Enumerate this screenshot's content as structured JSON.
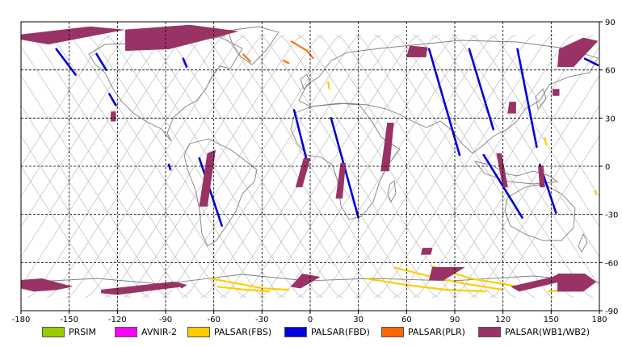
{
  "map": {
    "lon_ticks": [
      "-180",
      "-150",
      "-120",
      "-90",
      "-60",
      "-30",
      "0",
      "30",
      "60",
      "90",
      "120",
      "150",
      "180"
    ],
    "lat_ticks": [
      "90",
      "60",
      "30",
      "0",
      "-30",
      "-60",
      "-90"
    ],
    "lon_range": [
      -180,
      180
    ],
    "lat_range": [
      -90,
      90
    ],
    "grid_color": "#000000",
    "orbit_track_color": "#bdbdbd",
    "coastline_color": "#808080"
  },
  "legend": {
    "items": [
      {
        "label": "PRSIM",
        "color": "#99cc00"
      },
      {
        "label": "AVNIR-2",
        "color": "#ff00ff"
      },
      {
        "label": "PALSAR(FBS)",
        "color": "#ffcc00"
      },
      {
        "label": "PALSAR(FBD)",
        "color": "#0000dd"
      },
      {
        "label": "PALSAR(PLR)",
        "color": "#ff6600"
      },
      {
        "label": "PALSAR(WB1/WB2)",
        "color": "#993366"
      }
    ]
  },
  "fbd_strips": [
    {
      "lon1": -158,
      "lat1": 73,
      "lon2": -146,
      "lat2": 57
    },
    {
      "lon1": -133,
      "lat1": 70,
      "lon2": -127,
      "lat2": 60
    },
    {
      "lon1": -125,
      "lat1": 45,
      "lon2": -121,
      "lat2": 38
    },
    {
      "lon1": -79,
      "lat1": 67,
      "lon2": -77,
      "lat2": 62
    },
    {
      "lon1": -69,
      "lat1": 5,
      "lon2": -55,
      "lat2": -37
    },
    {
      "lon1": -88,
      "lat1": 1,
      "lon2": -87,
      "lat2": -2
    },
    {
      "lon1": -10,
      "lat1": 35,
      "lon2": -2,
      "lat2": 3
    },
    {
      "lon1": 13,
      "lat1": 30,
      "lon2": 30,
      "lat2": -32
    },
    {
      "lon1": 74,
      "lat1": 73,
      "lon2": 93,
      "lat2": 7
    },
    {
      "lon1": 99,
      "lat1": 73,
      "lon2": 114,
      "lat2": 23
    },
    {
      "lon1": 108,
      "lat1": 7,
      "lon2": 132,
      "lat2": -32
    },
    {
      "lon1": 129,
      "lat1": 73,
      "lon2": 141,
      "lat2": 12
    },
    {
      "lon1": 143,
      "lat1": 1,
      "lon2": 153,
      "lat2": -29
    },
    {
      "lon1": 171,
      "lat1": 67,
      "lon2": 179,
      "lat2": 63
    }
  ],
  "wb_polys": [
    [
      [
        -180,
        82
      ],
      [
        -137,
        87
      ],
      [
        -116,
        85
      ],
      [
        -163,
        76
      ],
      [
        -180,
        79
      ]
    ],
    [
      [
        -115,
        85
      ],
      [
        -75,
        88
      ],
      [
        -45,
        84
      ],
      [
        -88,
        73
      ],
      [
        -115,
        72
      ]
    ],
    [
      [
        -124,
        34
      ],
      [
        -121,
        34
      ],
      [
        -121,
        28
      ],
      [
        -124,
        28
      ]
    ],
    [
      [
        -64,
        8
      ],
      [
        -59,
        10
      ],
      [
        -64,
        -25
      ],
      [
        -69,
        -25
      ]
    ],
    [
      [
        -4,
        5
      ],
      [
        0,
        5
      ],
      [
        -5,
        -13
      ],
      [
        -9,
        -13
      ]
    ],
    [
      [
        19,
        2
      ],
      [
        22,
        2
      ],
      [
        20,
        -20
      ],
      [
        16,
        -20
      ]
    ],
    [
      [
        48,
        27
      ],
      [
        52,
        27
      ],
      [
        49,
        -3
      ],
      [
        44,
        -3
      ]
    ],
    [
      [
        62,
        75
      ],
      [
        73,
        74
      ],
      [
        72,
        68
      ],
      [
        60,
        68
      ]
    ],
    [
      [
        124,
        40
      ],
      [
        128,
        40
      ],
      [
        128,
        33
      ],
      [
        123,
        33
      ]
    ],
    [
      [
        116,
        8
      ],
      [
        119,
        8
      ],
      [
        123,
        -13
      ],
      [
        120,
        -13
      ]
    ],
    [
      [
        142,
        0
      ],
      [
        145,
        0
      ],
      [
        146,
        -13
      ],
      [
        143,
        -13
      ]
    ],
    [
      [
        155,
        73
      ],
      [
        170,
        80
      ],
      [
        179,
        78
      ],
      [
        164,
        62
      ],
      [
        154,
        62
      ]
    ],
    [
      [
        151,
        48
      ],
      [
        155,
        48
      ],
      [
        155,
        44
      ],
      [
        151,
        44
      ]
    ],
    [
      [
        70,
        -51
      ],
      [
        76,
        -51
      ],
      [
        75,
        -55
      ],
      [
        69,
        -55
      ]
    ],
    [
      [
        -180,
        -71
      ],
      [
        -167,
        -70
      ],
      [
        -148,
        -75
      ],
      [
        -158,
        -77
      ],
      [
        -172,
        -78
      ],
      [
        -180,
        -76
      ]
    ],
    [
      [
        -130,
        -77
      ],
      [
        -85,
        -72
      ],
      [
        -80,
        -75
      ],
      [
        -120,
        -80
      ],
      [
        -130,
        -79
      ]
    ],
    [
      [
        -5,
        -67
      ],
      [
        6,
        -69
      ],
      [
        -6,
        -76
      ],
      [
        -12,
        -75
      ]
    ],
    [
      [
        -84,
        -72
      ],
      [
        -77,
        -74
      ],
      [
        -80,
        -76
      ]
    ],
    [
      [
        125,
        -75
      ],
      [
        151,
        -69
      ],
      [
        155,
        -67
      ],
      [
        155,
        -72
      ],
      [
        130,
        -78
      ]
    ],
    [
      [
        154,
        -67
      ],
      [
        171,
        -67
      ],
      [
        178,
        -72
      ],
      [
        170,
        -78
      ],
      [
        154,
        -78
      ]
    ],
    [
      [
        76,
        -63
      ],
      [
        96,
        -63
      ],
      [
        83,
        -71
      ],
      [
        74,
        -71
      ]
    ]
  ],
  "fbs_arcs": [
    [
      [
        -62,
        -70
      ],
      [
        -40,
        -74
      ],
      [
        -30,
        -76
      ],
      [
        -13,
        -77
      ]
    ],
    [
      [
        -58,
        -75
      ],
      [
        -40,
        -77
      ],
      [
        -25,
        -78
      ]
    ],
    [
      [
        35,
        -70
      ],
      [
        60,
        -74
      ],
      [
        85,
        -77
      ],
      [
        110,
        -78
      ]
    ],
    [
      [
        52,
        -63
      ],
      [
        72,
        -68
      ],
      [
        95,
        -73
      ],
      [
        120,
        -77
      ]
    ],
    [
      [
        75,
        -62
      ],
      [
        100,
        -70
      ],
      [
        130,
        -75
      ]
    ],
    [
      [
        148,
        -78
      ],
      [
        160,
        -77
      ]
    ],
    [
      [
        11,
        53
      ],
      [
        12,
        48
      ]
    ],
    [
      [
        146,
        18
      ],
      [
        147,
        13
      ]
    ],
    [
      [
        177,
        -15
      ],
      [
        178,
        -18
      ]
    ]
  ],
  "plr_arcs": [
    [
      [
        -42,
        70
      ],
      [
        -37,
        65
      ]
    ],
    [
      [
        -12,
        78
      ],
      [
        -2,
        72
      ],
      [
        2,
        67
      ]
    ],
    [
      [
        -17,
        66
      ],
      [
        -13,
        64
      ]
    ]
  ],
  "orbit_offsets": [
    -180,
    -168,
    -156,
    -144,
    -132,
    -120,
    -108,
    -96,
    -84,
    -72,
    -60,
    -48,
    -36,
    -24,
    -12,
    0,
    12,
    24,
    36,
    48,
    60,
    72,
    84,
    96,
    108,
    120,
    132,
    144,
    156,
    168
  ]
}
